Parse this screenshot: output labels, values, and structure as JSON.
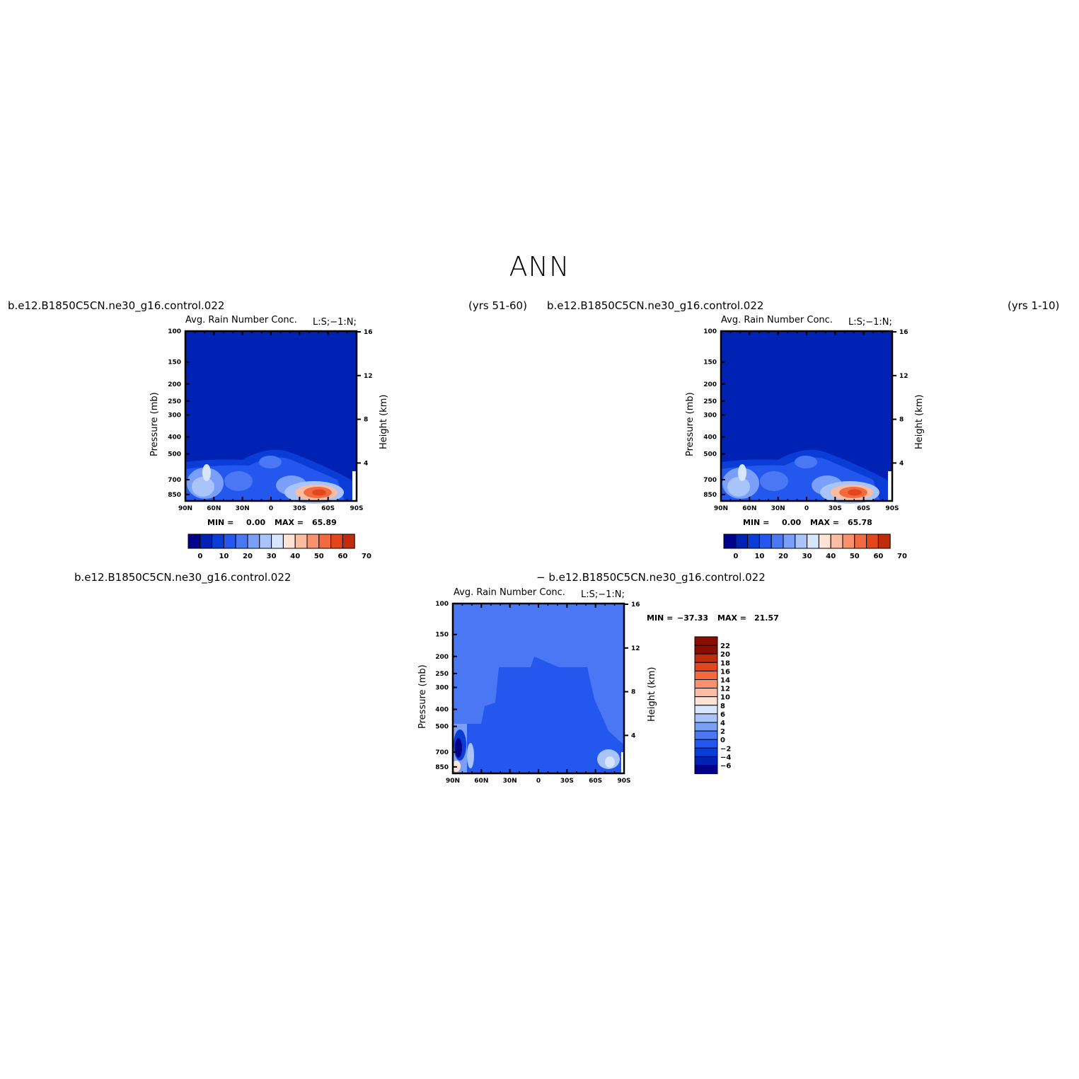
{
  "page": {
    "title": "ANN",
    "case_left": "b.e12.B1850C5CN.ne30_g16.control.022",
    "years_left": "(yrs 51-60)",
    "case_right": "b.e12.B1850C5CN.ne30_g16.control.022",
    "years_right": "(yrs 1-10)",
    "diff_case_a": "b.e12.B1850C5CN.ne30_g16.control.022",
    "diff_case_b": "− b.e12.B1850C5CN.ne30_g16.control.022"
  },
  "chart_data": [
    {
      "type": "heatmap",
      "title": "Avg. Rain Number Conc.",
      "title_right": "L:S;−1:N;",
      "xlabel": "",
      "ylabel": "Pressure (mb)",
      "ylabel_right": "Height (km)",
      "x_ticks": [
        "90N",
        "60N",
        "30N",
        "0",
        "30S",
        "60S",
        "90S"
      ],
      "y_ticks": [
        100,
        150,
        200,
        250,
        300,
        400,
        500,
        700,
        850
      ],
      "y_right_ticks": [
        16,
        12,
        8,
        4
      ],
      "min_label": "MIN =",
      "min_value": "0.00",
      "max_label": "MAX =",
      "max_value": "65.89",
      "colorbar_ticks": [
        "0",
        "10",
        "20",
        "30",
        "40",
        "50",
        "60",
        "70"
      ],
      "contour_levels": [
        0,
        5,
        10,
        15,
        20,
        25,
        30,
        35,
        40,
        45,
        50,
        55,
        60,
        65,
        70
      ]
    },
    {
      "type": "heatmap",
      "title": "Avg. Rain Number Conc.",
      "title_right": "L:S;−1:N;",
      "xlabel": "",
      "ylabel": "Pressure (mb)",
      "ylabel_right": "Height (km)",
      "x_ticks": [
        "90N",
        "60N",
        "30N",
        "0",
        "30S",
        "60S",
        "90S"
      ],
      "y_ticks": [
        100,
        150,
        200,
        250,
        300,
        400,
        500,
        700,
        850
      ],
      "y_right_ticks": [
        16,
        12,
        8,
        4
      ],
      "min_label": "MIN =",
      "min_value": "0.00",
      "max_label": "MAX =",
      "max_value": "65.78",
      "colorbar_ticks": [
        "0",
        "10",
        "20",
        "30",
        "40",
        "50",
        "60",
        "70"
      ],
      "contour_levels": [
        0,
        5,
        10,
        15,
        20,
        25,
        30,
        35,
        40,
        45,
        50,
        55,
        60,
        65,
        70
      ]
    },
    {
      "type": "heatmap",
      "title": "Avg. Rain Number Conc.",
      "title_right": "L:S;−1:N;",
      "xlabel": "",
      "ylabel": "Pressure (mb)",
      "ylabel_right": "Height (km)",
      "x_ticks": [
        "90N",
        "60N",
        "30N",
        "0",
        "30S",
        "60S",
        "90S"
      ],
      "y_ticks": [
        100,
        150,
        200,
        250,
        300,
        400,
        500,
        700,
        850
      ],
      "y_right_ticks": [
        16,
        12,
        8,
        4
      ],
      "min_label": "MIN =",
      "min_value": "−37.33",
      "max_label": "MAX =",
      "max_value": "21.57",
      "colorbar_ticks": [
        "22",
        "20",
        "18",
        "16",
        "14",
        "12",
        "10",
        "8",
        "6",
        "4",
        "2",
        "0",
        "−2",
        "−4",
        "−6"
      ]
    }
  ],
  "colors": {
    "seq": [
      "#00008b",
      "#0022b4",
      "#0a3dd6",
      "#2457ee",
      "#4a78f5",
      "#7a9ff8",
      "#a9c4fb",
      "#d6e6fd",
      "#ffe4d6",
      "#fcbca2",
      "#f8916c",
      "#f36a40",
      "#e2461c",
      "#c12c0c",
      "#8b0d02"
    ],
    "diff": [
      "#00008b",
      "#0022b4",
      "#0a3dd6",
      "#2457ee",
      "#4a78f5",
      "#7a9ff8",
      "#a9c4fb",
      "#d6e6fd",
      "#ffe4d6",
      "#fcbca2",
      "#f8916c",
      "#f36a40",
      "#e2461c",
      "#c12c0c",
      "#8b0d02",
      "#8b0d02"
    ]
  }
}
